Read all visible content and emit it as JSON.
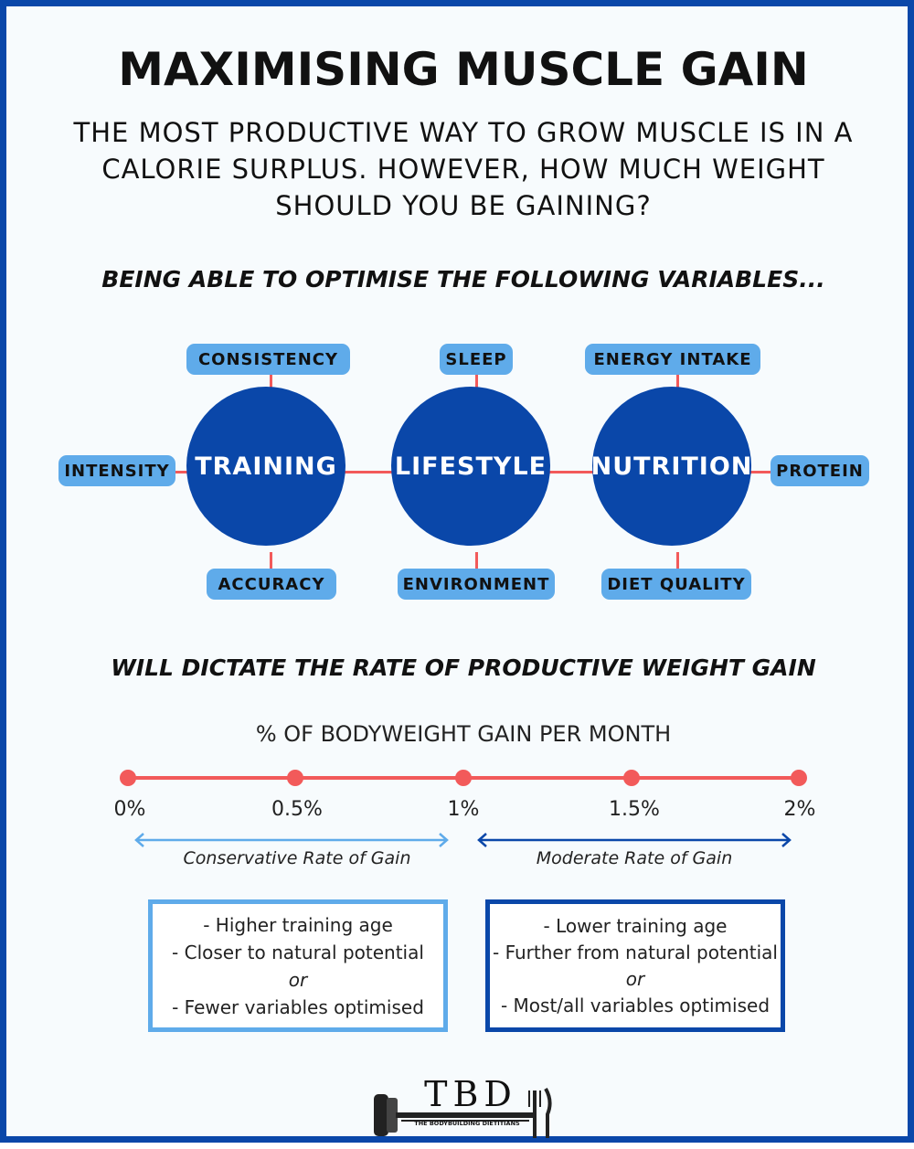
{
  "header": {
    "title": "MAXIMISING MUSCLE GAIN",
    "subtitle": "THE MOST PRODUCTIVE WAY TO GROW MUSCLE IS IN A CALORIE SURPLUS. HOWEVER, HOW MUCH WEIGHT SHOULD YOU BE GAINING?"
  },
  "variables_heading": "BEING ABLE TO OPTIMISE THE FOLLOWING VARIABLES...",
  "hubs": [
    {
      "label": "TRAINING",
      "top": "CONSISTENCY",
      "bottom": "ACCURACY",
      "side": "INTENSITY"
    },
    {
      "label": "LIFESTYLE",
      "top": "SLEEP",
      "bottom": "ENVIRONMENT",
      "side": ""
    },
    {
      "label": "NUTRITION",
      "top": "ENERGY INTAKE",
      "bottom": "DIET QUALITY",
      "side": "PROTEIN"
    }
  ],
  "dictate_heading": "WILL DICTATE THE RATE OF PRODUCTIVE WEIGHT GAIN",
  "scale": {
    "title": "% OF BODYWEIGHT GAIN PER MONTH",
    "ticks": [
      "0%",
      "0.5%",
      "1%",
      "1.5%",
      "2%"
    ],
    "conservative_label": "Conservative Rate of Gain",
    "moderate_label": "Moderate Rate of Gain"
  },
  "boxes": {
    "conservative": [
      "- Higher training age",
      "- Closer to natural potential",
      "or",
      "- Fewer variables optimised"
    ],
    "moderate": [
      "- Lower training age",
      "- Further from natural potential",
      "or",
      "- Most/all variables optimised"
    ]
  },
  "logo": {
    "letters": "TBD",
    "name": "THE BODYBUILDING DIETITIANS",
    "icon": "barbell-fork-icon"
  },
  "colors": {
    "dark_blue": "#0a47a9",
    "light_blue": "#5fabea",
    "red": "#f25a5a"
  }
}
